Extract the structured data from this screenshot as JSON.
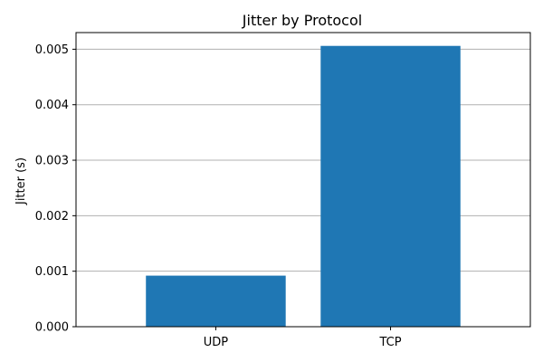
{
  "chart_data": {
    "type": "bar",
    "title": "Jitter by Protocol",
    "xlabel": "",
    "ylabel": "Jitter (s)",
    "categories": [
      "UDP",
      "TCP"
    ],
    "values": [
      0.00092,
      0.00506
    ],
    "ylim": [
      0,
      0.0053
    ],
    "yticks": [
      0.0,
      0.001,
      0.002,
      0.003,
      0.004,
      0.005
    ],
    "ytick_labels": [
      "0.000",
      "0.001",
      "0.002",
      "0.003",
      "0.004",
      "0.005"
    ],
    "grid": "y",
    "bar_color": "#1f77b4",
    "grid_color": "#b0b0b0"
  }
}
